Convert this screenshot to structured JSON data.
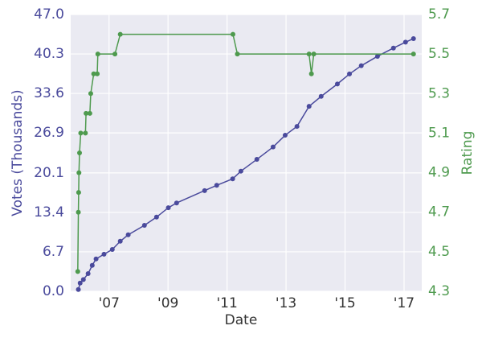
{
  "chart_data": {
    "type": "line",
    "xlabel": "Date",
    "ylabel": "Votes (Thousands)",
    "y2label": "Rating",
    "xlim": [
      2005.7,
      2017.6
    ],
    "xticks": [
      {
        "value": 2007,
        "label": "'07"
      },
      {
        "value": 2009,
        "label": "'09"
      },
      {
        "value": 2011,
        "label": "'11"
      },
      {
        "value": 2013,
        "label": "'13"
      },
      {
        "value": 2015,
        "label": "'15"
      },
      {
        "value": 2017,
        "label": "'17"
      }
    ],
    "ylim": [
      0,
      47
    ],
    "yticks": [
      {
        "value": 0,
        "label": "0.0"
      },
      6.7,
      13.4,
      20.1,
      26.9,
      33.6,
      40.3,
      {
        "value": 47,
        "label": "47.0"
      }
    ],
    "y2lim": [
      4.3,
      5.7
    ],
    "y2ticks": [
      4.3,
      4.5,
      4.7,
      4.9,
      5.1,
      5.3,
      5.5,
      5.7
    ],
    "grid": true,
    "series": [
      {
        "color": "#4a4a9c",
        "axis": "y",
        "x": [
          2005.96,
          2006.02,
          2006.13,
          2006.29,
          2006.43,
          2006.56,
          2006.83,
          2007.11,
          2007.38,
          2007.65,
          2008.2,
          2008.61,
          2009.01,
          2009.29,
          2010.24,
          2010.65,
          2011.19,
          2011.47,
          2012.01,
          2012.56,
          2012.97,
          2013.37,
          2013.78,
          2014.19,
          2014.74,
          2015.15,
          2015.55,
          2016.1,
          2016.64,
          2017.05,
          2017.32
        ],
        "values": [
          0.3,
          1.4,
          2.0,
          3.0,
          4.4,
          5.5,
          6.3,
          7.1,
          8.5,
          9.6,
          11.2,
          12.6,
          14.2,
          15.0,
          17.1,
          18.0,
          19.1,
          20.4,
          22.4,
          24.5,
          26.5,
          28.0,
          31.4,
          33.1,
          35.2,
          36.9,
          38.3,
          39.9,
          41.3,
          42.3,
          42.9
        ]
      },
      {
        "color": "#4e9a4e",
        "axis": "y2",
        "x": [
          2005.94,
          2005.96,
          2005.97,
          2005.98,
          2006.0,
          2006.04,
          2006.2,
          2006.22,
          2006.35,
          2006.38,
          2006.48,
          2006.6,
          2006.62,
          2007.2,
          2007.38,
          2011.2,
          2011.35,
          2013.78,
          2013.86,
          2013.94,
          2017.32
        ],
        "values": [
          4.4,
          4.7,
          4.8,
          4.9,
          5.0,
          5.1,
          5.1,
          5.2,
          5.2,
          5.3,
          5.4,
          5.4,
          5.5,
          5.5,
          5.6,
          5.6,
          5.5,
          5.5,
          5.4,
          5.5,
          5.5
        ]
      }
    ]
  }
}
